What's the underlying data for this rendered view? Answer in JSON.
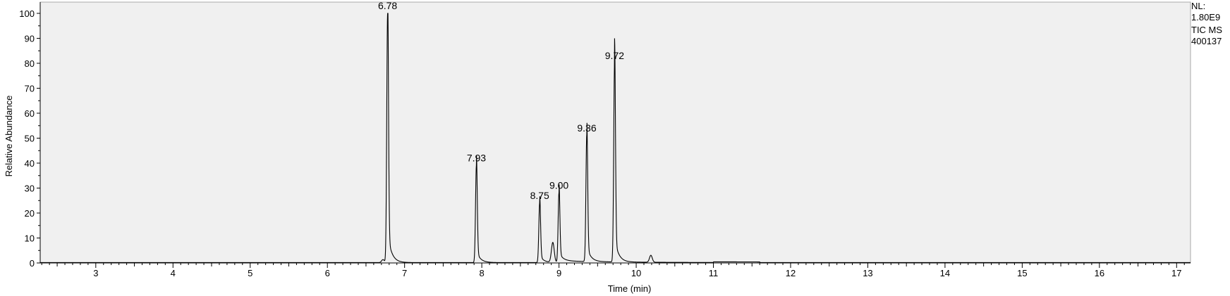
{
  "info": {
    "nl_label": "NL:",
    "nl_value": "1.80E9",
    "scan_type": "TIC  MS",
    "file_id": "400137"
  },
  "chart_data": {
    "type": "line",
    "xlabel": "Time (min)",
    "ylabel": "Relative Abundance",
    "xlim": [
      2.28,
      17.18
    ],
    "ylim": [
      0,
      100
    ],
    "x_ticks": [
      3,
      4,
      5,
      6,
      7,
      8,
      9,
      10,
      11,
      12,
      13,
      14,
      15,
      16,
      17
    ],
    "y_ticks": [
      0,
      10,
      20,
      30,
      40,
      50,
      60,
      70,
      80,
      90,
      100
    ],
    "grid": false,
    "colors": {
      "trace": "#000000",
      "plot_bg": "#f0f0f0",
      "frame": "#a8a8a8"
    },
    "peaks": [
      {
        "rt": 6.78,
        "label": "6.78",
        "height": 100
      },
      {
        "rt": 7.93,
        "label": "7.93",
        "height": 39
      },
      {
        "rt": 8.75,
        "label": "8.75",
        "height": 24
      },
      {
        "rt": 9.0,
        "label": "9.00",
        "height": 28
      },
      {
        "rt": 9.36,
        "label": "9.36",
        "height": 51
      },
      {
        "rt": 9.72,
        "label": "9.72",
        "height": 80
      }
    ],
    "minor_peaks": [
      {
        "rt": 6.72,
        "height": 1.2
      },
      {
        "rt": 8.92,
        "height": 8
      },
      {
        "rt": 10.19,
        "height": 2.8
      }
    ]
  }
}
